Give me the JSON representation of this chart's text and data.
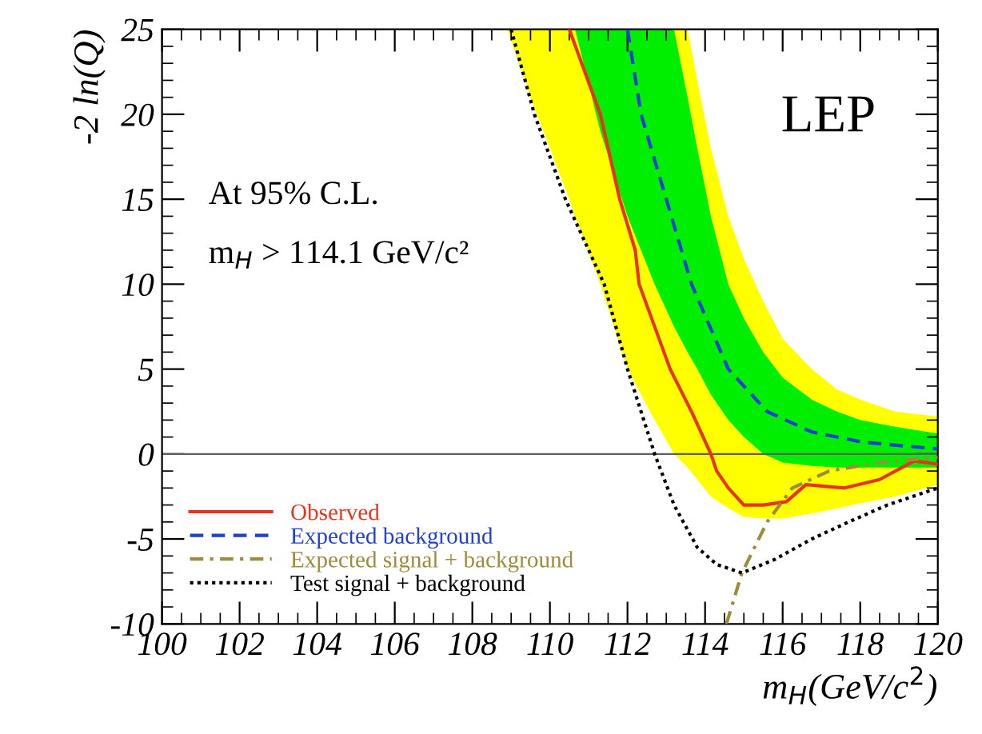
{
  "chart_data": {
    "type": "line",
    "xlabel": "m$_{H}$(GeV/c$^{2}$)",
    "ylabel": "-2 ln(Q)",
    "xlim": [
      100,
      120
    ],
    "ylim": [
      -10,
      25
    ],
    "xticks": [
      100,
      102,
      104,
      106,
      108,
      110,
      112,
      114,
      116,
      118,
      120
    ],
    "yticks": [
      -10,
      -5,
      0,
      5,
      10,
      15,
      20,
      25
    ],
    "grid": false,
    "legend": "bottom left",
    "marker": "none",
    "ref_lines": [
      {
        "axis": "y",
        "value": 0,
        "color": "#606060"
      }
    ],
    "annotations": [
      "LEP",
      "At 95% C.L.",
      "m$_{H}$ > 114.1 GeV/c²"
    ],
    "series": [
      {
        "type": "area",
        "color": "#ffff00",
        "x": [
          108.9,
          109.5,
          110,
          110.5,
          110.65,
          111.3,
          112,
          112.7,
          113.2,
          113.55,
          113.8,
          114.15,
          114.6,
          115,
          115.5,
          116,
          116.75,
          117.4,
          118,
          118.9,
          120
        ],
        "values": [
          null,
          null,
          null,
          null,
          null,
          null,
          null,
          null,
          null,
          null,
          null,
          null,
          null,
          null,
          null,
          null,
          null,
          null,
          null,
          null,
          null
        ],
        "lower": [
          25,
          21,
          18,
          15,
          14,
          10,
          5,
          2,
          0,
          -0.8,
          -1.5,
          -2.5,
          -3.2,
          -3.7,
          -3.8,
          -3.8,
          -3.5,
          -3.2,
          -2.9,
          -2.5,
          -1.8
        ],
        "upper": [
          25,
          25,
          25,
          25,
          25,
          25,
          25,
          25,
          25,
          25,
          22,
          18,
          14,
          11.5,
          9,
          6.8,
          5,
          3.8,
          3.2,
          2.5,
          2.2
        ]
      },
      {
        "type": "area",
        "color": "#00ee00",
        "x": [
          110.65,
          111.3,
          112,
          112.7,
          113.2,
          113.55,
          113.8,
          114.15,
          114.6,
          115,
          115.5,
          116,
          116.75,
          117.4,
          118,
          118.9,
          120
        ],
        "values": [
          null,
          null,
          null,
          null,
          null,
          null,
          null,
          null,
          null,
          null,
          null,
          null,
          null,
          null,
          null,
          null,
          null
        ],
        "lower": [
          25,
          19,
          14,
          10,
          7.5,
          6,
          5,
          3.5,
          2,
          1,
          0,
          -0.5,
          -0.7,
          -0.8,
          -0.8,
          -0.8,
          -0.8
        ],
        "upper": [
          25,
          25,
          25,
          25,
          25,
          21,
          18,
          14,
          10,
          8,
          6,
          4.5,
          3.2,
          2.5,
          2,
          1.6,
          1.2
        ]
      },
      {
        "name": "Observed",
        "color": "#e8341c",
        "line_style": "solid",
        "x": [
          110.5,
          111.3,
          111.8,
          112.2,
          112.3,
          113.1,
          113.65,
          114.15,
          114.3,
          114.6,
          115.0,
          115.5,
          116.1,
          116.6,
          117.6,
          118.5,
          119.4,
          120
        ],
        "values": [
          25,
          20,
          15,
          12,
          10,
          5,
          2.5,
          0,
          -1,
          -2,
          -3,
          -3,
          -2.8,
          -1.8,
          -2,
          -1.5,
          -0.4,
          -0.6
        ]
      },
      {
        "name": "Expected background",
        "color": "#2040d0",
        "line_style": "dashed",
        "x": [
          112.0,
          112.35,
          113.0,
          113.65,
          114.6,
          115.6,
          116.75,
          118.05,
          120
        ],
        "values": [
          25,
          20,
          15,
          10,
          5,
          2.5,
          1.3,
          0.7,
          0.3
        ]
      },
      {
        "name": "Expected signal + background",
        "color": "#9c8c3c",
        "line_style": "dashdot",
        "x": [
          114.55,
          114.95,
          115.6,
          116.25,
          117.2,
          118.5,
          120
        ],
        "values": [
          -10,
          -7,
          -4,
          -2,
          -1,
          -0.5,
          -0.2
        ]
      },
      {
        "name": "Test signal + background",
        "color": "#000000",
        "line_style": "dotted",
        "x": [
          109.0,
          109.6,
          110.4,
          111.4,
          112.0,
          112.7,
          113.2,
          113.8,
          114.3,
          114.95,
          115.8,
          116.75,
          117.7,
          118.7,
          120
        ],
        "values": [
          25,
          20,
          15,
          10,
          5,
          0,
          -3,
          -5.5,
          -6.5,
          -7,
          -6.2,
          -5,
          -4,
          -3,
          -2
        ]
      }
    ]
  }
}
